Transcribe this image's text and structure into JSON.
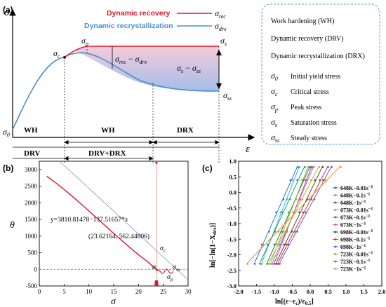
{
  "panel_a": {
    "label": "(a)",
    "y_symbol": "σ",
    "x_symbol": "ε",
    "legend": [
      {
        "name": "Dynamic recovery",
        "symbol": "σ",
        "sub": "rec",
        "color": "#e8142a"
      },
      {
        "name": "Dynamic recrystallization",
        "symbol": "σ",
        "sub": "drx",
        "color": "#4a90c8"
      }
    ],
    "points": {
      "sigma0": {
        "sym": "σ",
        "sub": "0"
      },
      "sigmac": {
        "sym": "σ",
        "sub": "c"
      },
      "sigmap": {
        "sym": "σ",
        "sub": "p"
      },
      "sigmas": {
        "sym": "σ",
        "sub": "s"
      },
      "sigmass": {
        "sym": "σ",
        "sub": "ss"
      }
    },
    "diff_drx": {
      "a": "σ",
      "asub": "rec",
      "op": " − ",
      "b": "σ",
      "bsub": "drx"
    },
    "diff_ss": {
      "a": "σ",
      "asub": "s",
      "op": " − ",
      "b": "σ",
      "bsub": "ss"
    },
    "stages_top": [
      "WH",
      "WH",
      "DRX"
    ],
    "stages_bottom": [
      "DRV",
      "DRV+DRX"
    ],
    "info_box": {
      "items": [
        "Work hardening (WH)",
        "Dynamic recovery (DRV)",
        "Dynamic recrystallization (DRX)"
      ],
      "symbols": [
        {
          "sym": "σ",
          "sub": "0",
          "desc": "Initial yield stress"
        },
        {
          "sym": "σ",
          "sub": "c",
          "desc": "Critical stress"
        },
        {
          "sym": "σ",
          "sub": "p",
          "desc": "Peak stress"
        },
        {
          "sym": "σ",
          "sub": "s",
          "desc": "Saturation stress"
        },
        {
          "sym": "σ",
          "sub": "ss",
          "desc": "Steady stress"
        }
      ]
    }
  },
  "panel_b": {
    "label": "(b)",
    "equation": "y=3810.81478−137.51657*x",
    "point_text": "(23.62164, 562.44806)",
    "ylabel": "θ",
    "xlabel": "σ",
    "annot": [
      {
        "sym": "σ",
        "sub": "c"
      },
      {
        "sym": "σ",
        "sub": "s"
      },
      {
        "sym": "σ",
        "sub": "p"
      },
      {
        "sym": "σ",
        "sub": "ss"
      }
    ],
    "chart_data": {
      "type": "line",
      "xlim": [
        0,
        30
      ],
      "ylim": [
        -500,
        3250
      ],
      "xticks": [
        "0",
        "5",
        "10",
        "15",
        "20",
        "25",
        "30"
      ],
      "yticks": [
        "-500",
        "0",
        "500",
        "1000",
        "1500",
        "2000",
        "2500",
        "3000"
      ],
      "curve": {
        "x": [
          1.5,
          3,
          5,
          7,
          9,
          11,
          13,
          15,
          17,
          19,
          20.5,
          22,
          23,
          23.62,
          24.1,
          24.4
        ],
        "y": [
          2800,
          2640,
          2400,
          2150,
          1890,
          1620,
          1350,
          1080,
          820,
          560,
          380,
          210,
          80,
          0,
          -40,
          -60
        ]
      },
      "fit_line": {
        "x": [
          -5,
          30
        ],
        "slope": -137.51657,
        "intercept": 3810.81478
      },
      "vline_x": 23.62,
      "zero_line": true
    }
  },
  "panel_c": {
    "label": "(c)",
    "ylabel": "ln[−ln(1−X",
    "ylabel_sub": "drx",
    "ylabel_end": ")]",
    "xlabel": "ln[(ε−ε",
    "xlabel_sub": "c",
    "xlabel_mid": ")/ε",
    "xlabel_sub2": "0.5",
    "xlabel_end": "]",
    "chart_data": {
      "type": "scatter",
      "xlim": [
        -2.0,
        2.0
      ],
      "ylim": [
        -3.0,
        1.0
      ],
      "xticks": [
        "-2.0",
        "-1.5",
        "-1.0",
        "-0.5",
        "0.0",
        "0.5",
        "1.0",
        "1.5",
        "2.0"
      ],
      "yticks": [
        "-3.0",
        "-2.5",
        "-2.0",
        "-1.5",
        "-1.0",
        "-0.5",
        "0.0",
        "0.5",
        "1.0"
      ],
      "series": [
        {
          "name": "648K−0.01s",
          "exp": "−1",
          "color": "#2f6fd6",
          "x0": -1.55,
          "x1": -0.35
        },
        {
          "name": "648K−0.1s",
          "exp": "−1",
          "color": "#38b8d8",
          "x0": -1.35,
          "x1": -0.3
        },
        {
          "name": "648K−1s",
          "exp": "−1",
          "color": "#2f7a3a",
          "x0": -1.2,
          "x1": 0.0
        },
        {
          "name": "673K−0.01s",
          "exp": "−1",
          "color": "#6fbf3a",
          "x0": -1.1,
          "x1": -0.05
        },
        {
          "name": "673K−0.1s",
          "exp": "−1",
          "color": "#a040c0",
          "x0": -1.0,
          "x1": 0.05
        },
        {
          "name": "673K−1s",
          "exp": "−1",
          "color": "#e85aa8",
          "x0": -1.05,
          "x1": 0.1
        },
        {
          "name": "698K−0.01s",
          "exp": "−1",
          "color": "#4a4a4a",
          "x0": -0.95,
          "x1": 0.35
        },
        {
          "name": "698K−0.1s",
          "exp": "−1",
          "color": "#c83a3a",
          "x0": -0.9,
          "x1": 0.5
        },
        {
          "name": "698K−1s",
          "exp": "−1",
          "color": "#6a5acd",
          "x0": -0.85,
          "x1": 0.6
        },
        {
          "name": "723K−0.01s",
          "exp": "−1",
          "color": "#f08a24",
          "x0": -1.75,
          "x1": 0.85
        },
        {
          "name": "723K−0.1s",
          "exp": "−1",
          "color": "#1f9a8a",
          "x0": -1.4,
          "x1": -0.15
        },
        {
          "name": "723K−1s",
          "exp": "−1",
          "color": "#a8c030",
          "x0": -1.15,
          "x1": 0.25
        }
      ]
    }
  }
}
